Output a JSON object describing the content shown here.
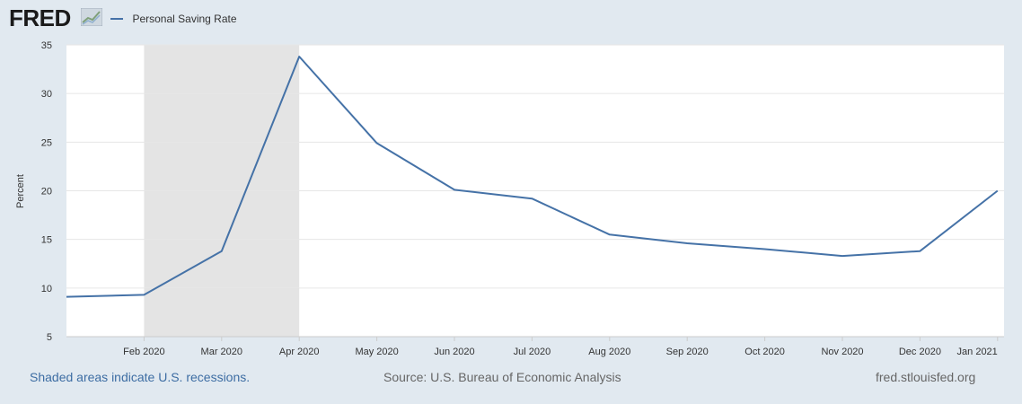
{
  "header": {
    "logo_text": "FRED",
    "series_label": "Personal Saving Rate"
  },
  "chart_data": {
    "type": "line",
    "ylabel": "Percent",
    "ylim": [
      5,
      35
    ],
    "yticks": [
      5,
      10,
      15,
      20,
      25,
      30,
      35
    ],
    "grid": true,
    "legend": "top-left",
    "colors": {
      "line": "#4572a7",
      "recession": "#e4e4e4"
    },
    "x_tick_labels": [
      "Feb 2020",
      "Mar 2020",
      "Apr 2020",
      "May 2020",
      "Jun 2020",
      "Jul 2020",
      "Aug 2020",
      "Sep 2020",
      "Oct 2020",
      "Nov 2020",
      "Dec 2020",
      "Jan 2021"
    ],
    "recession": {
      "start": "2020-02",
      "end": "2020-04"
    },
    "series": [
      {
        "name": "Personal Saving Rate",
        "x": [
          "2020-01",
          "2020-02",
          "2020-03",
          "2020-04",
          "2020-05",
          "2020-06",
          "2020-07",
          "2020-08",
          "2020-09",
          "2020-10",
          "2020-11",
          "2020-12",
          "2021-01"
        ],
        "values": [
          9.1,
          9.3,
          13.8,
          33.8,
          24.9,
          20.1,
          19.2,
          15.5,
          14.6,
          14.0,
          13.3,
          13.8,
          20.0
        ]
      }
    ]
  },
  "footer": {
    "recession_note": "Shaded areas indicate U.S. recessions.",
    "source": "Source: U.S. Bureau of Economic Analysis",
    "site": "fred.stlouisfed.org"
  }
}
